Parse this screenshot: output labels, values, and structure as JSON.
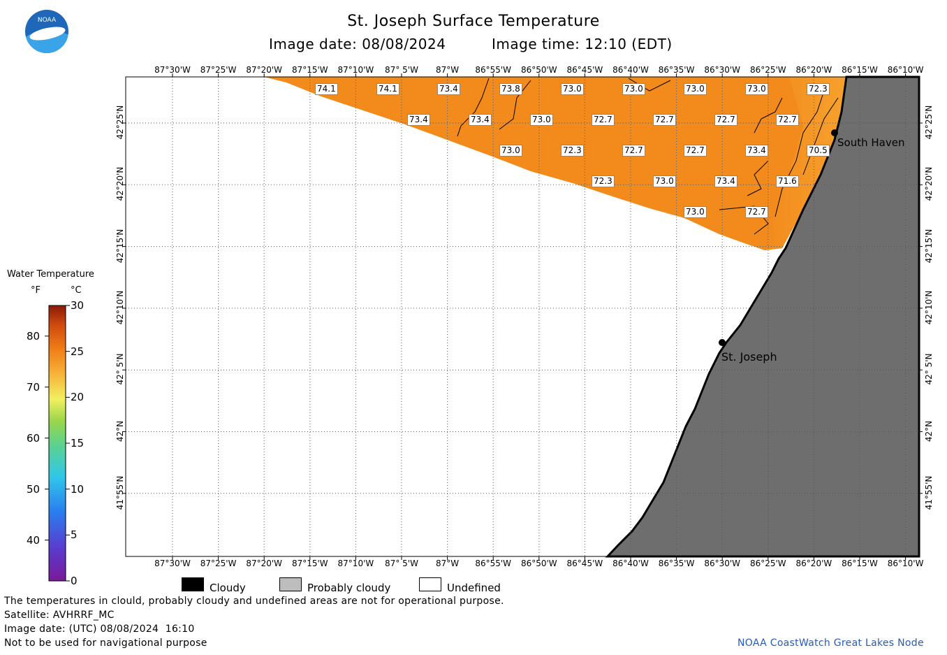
{
  "header": {
    "title": "St. Joseph Surface Temperature",
    "image_date": "Image date: 08/08/2024",
    "image_time": "Image time: 12:10 (EDT)"
  },
  "logo": {
    "text": "NOAA"
  },
  "lon_labels": [
    "87°30'W",
    "87°25'W",
    "87°20'W",
    "87°15'W",
    "87°10'W",
    "87° 5'W",
    "87°W",
    "86°55'W",
    "86°50'W",
    "86°45'W",
    "86°40'W",
    "86°35'W",
    "86°30'W",
    "86°25'W",
    "86°20'W",
    "86°15'W",
    "86°10'W"
  ],
  "lat_labels": [
    "42°25'N",
    "42°20'N",
    "42°15'N",
    "42°10'N",
    "42° 5'N",
    "42°N",
    "41°55'N"
  ],
  "legend": {
    "title": "Water Temperature",
    "unit_f": "°F",
    "unit_c": "°C",
    "f_ticks": [
      "80",
      "70",
      "60",
      "50",
      "40"
    ],
    "c_ticks": [
      "30",
      "25",
      "20",
      "15",
      "10",
      "5",
      "0"
    ]
  },
  "places": [
    {
      "name": "South Haven"
    },
    {
      "name": "St. Joseph"
    }
  ],
  "temp_labels": [
    "74.1",
    "74.1",
    "73.4",
    "73.8",
    "73.0",
    "73.0",
    "73.0",
    "73.0",
    "72.3",
    "73.4",
    "73.4",
    "73.0",
    "72.7",
    "72.7",
    "72.7",
    "72.7",
    "73.0",
    "72.3",
    "72.7",
    "72.7",
    "73.4",
    "70.5",
    "72.3",
    "73.0",
    "73.4",
    "71.6",
    "73.0",
    "72.7"
  ],
  "key": {
    "cloudy": "Cloudy",
    "probably_cloudy": "Probably cloudy",
    "undefined": "Undefined"
  },
  "footer": {
    "note": "The temperatures in clould, probably cloudy and undefined areas are not for operational purpose.",
    "satellite": "Satellite: AVHRRF_MC",
    "utc": "Image date: (UTC) 08/08/2024  16:10",
    "nav": "Not to be used for navigational purpose",
    "credit": "NOAA CoastWatch Great Lakes Node"
  },
  "colors": {
    "water": "#f28a1c",
    "water_near_shore": "#f7a530",
    "land": "#6e6e6e",
    "cloudy": "#000000",
    "probably_cloudy": "#bdbdbd",
    "undefined": "#ffffff"
  }
}
